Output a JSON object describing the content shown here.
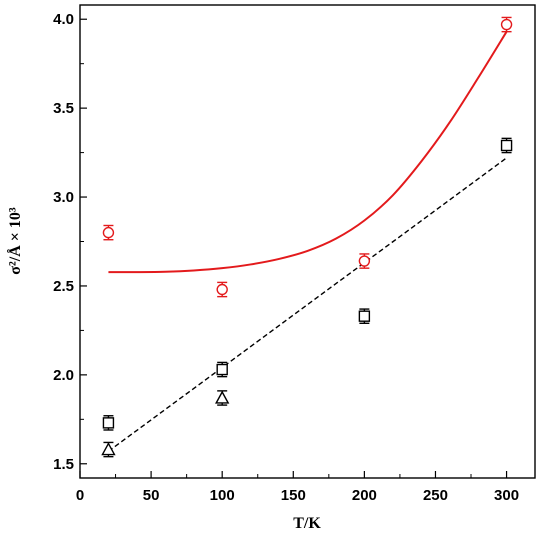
{
  "chart_data": {
    "type": "scatter",
    "title": "",
    "xlabel": "T/K",
    "ylabel": "σ²/Å × 10³",
    "xlim": [
      0,
      320
    ],
    "ylim": [
      1.42,
      4.08
    ],
    "xticks": [
      0,
      50,
      100,
      150,
      200,
      250,
      300
    ],
    "xtick_labels": [
      "0",
      "50",
      "100",
      "150",
      "200",
      "250",
      "300"
    ],
    "yticks": [
      1.5,
      2.0,
      2.5,
      3.0,
      3.5,
      4.0
    ],
    "ytick_labels": [
      "1.5",
      "2.0",
      "2.5",
      "3.0",
      "3.5",
      "4.0"
    ],
    "grid": false,
    "legend": "none",
    "series": [
      {
        "marker": "circle",
        "color": "#e31a1c",
        "x": [
          20,
          100,
          200,
          300
        ],
        "y": [
          2.8,
          2.48,
          2.64,
          3.97
        ],
        "yerr": [
          0.04,
          0.04,
          0.04,
          0.04
        ]
      },
      {
        "marker": "square",
        "color": "#000000",
        "x": [
          20,
          100,
          200,
          300
        ],
        "y": [
          1.73,
          2.03,
          2.33,
          3.29
        ],
        "yerr": [
          0.04,
          0.04,
          0.04,
          0.04
        ]
      },
      {
        "marker": "triangle",
        "color": "#000000",
        "x": [
          20,
          100
        ],
        "y": [
          1.58,
          1.87
        ],
        "yerr": [
          0.04,
          0.04
        ]
      }
    ],
    "curves": [
      {
        "style": "solid",
        "color": "#e31a1c",
        "x": [
          20,
          40,
          60,
          80,
          100,
          120,
          140,
          160,
          180,
          200,
          220,
          240,
          260,
          280,
          300
        ],
        "y": [
          2.578,
          2.578,
          2.58,
          2.587,
          2.6,
          2.621,
          2.652,
          2.697,
          2.766,
          2.868,
          3.01,
          3.2,
          3.42,
          3.67,
          3.93
        ]
      },
      {
        "style": "dashed",
        "color": "#000000",
        "x": [
          20,
          300
        ],
        "y": [
          1.57,
          3.22
        ]
      }
    ]
  }
}
